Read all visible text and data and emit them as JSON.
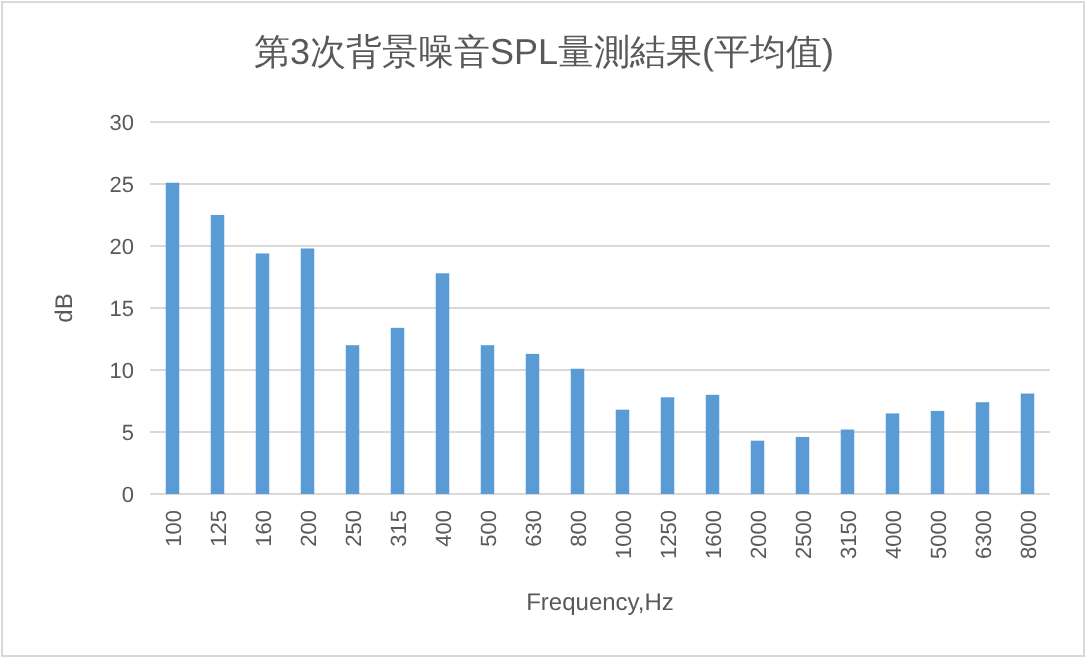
{
  "chart_data": {
    "type": "bar",
    "title": "第3次背景噪音SPL量測結果(平均值)",
    "xlabel": "Frequency,Hz",
    "ylabel": "dB",
    "categories": [
      "100",
      "125",
      "160",
      "200",
      "250",
      "315",
      "400",
      "500",
      "630",
      "800",
      "1000",
      "1250",
      "1600",
      "2000",
      "2500",
      "3150",
      "4000",
      "5000",
      "6300",
      "8000"
    ],
    "values": [
      25.1,
      22.5,
      19.4,
      19.8,
      12.0,
      13.4,
      17.8,
      12.0,
      11.3,
      10.1,
      6.8,
      7.8,
      8.0,
      4.3,
      4.6,
      5.2,
      6.5,
      6.7,
      7.4,
      8.1
    ],
    "color": "#5b9bd5",
    "ylim": [
      0,
      30
    ],
    "yticks": [
      0,
      5,
      10,
      15,
      20,
      25,
      30
    ],
    "grid": "y"
  }
}
